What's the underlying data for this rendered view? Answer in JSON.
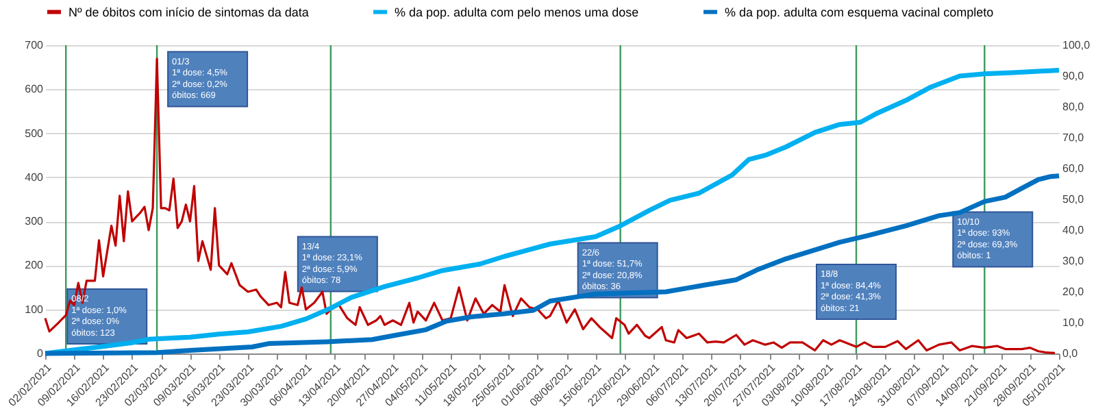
{
  "chart_data": {
    "type": "line",
    "legend": "top",
    "grid": "y",
    "xlim": [
      "2021-02-02",
      "2021-10-05"
    ],
    "xticks": [
      {
        "value": "2021-02-02",
        "label": "02/02/2021"
      },
      {
        "value": "2021-02-09",
        "label": "09/02/2021"
      },
      {
        "value": "2021-02-16",
        "label": "16/02/2021"
      },
      {
        "value": "2021-02-23",
        "label": "23/02/2021"
      },
      {
        "value": "2021-03-02",
        "label": "02/03/2021"
      },
      {
        "value": "2021-03-09",
        "label": "09/03/2021"
      },
      {
        "value": "2021-03-16",
        "label": "16/03/2021"
      },
      {
        "value": "2021-03-23",
        "label": "23/03/2021"
      },
      {
        "value": "2021-03-30",
        "label": "30/03/2021"
      },
      {
        "value": "2021-04-06",
        "label": "06/04/2021"
      },
      {
        "value": "2021-04-13",
        "label": "13/04/2021"
      },
      {
        "value": "2021-04-20",
        "label": "20/04/2021"
      },
      {
        "value": "2021-04-27",
        "label": "27/04/2021"
      },
      {
        "value": "2021-05-04",
        "label": "04/05/2021"
      },
      {
        "value": "2021-05-11",
        "label": "11/05/2021"
      },
      {
        "value": "2021-05-18",
        "label": "18/05/2021"
      },
      {
        "value": "2021-05-25",
        "label": "25/05/2021"
      },
      {
        "value": "2021-06-01",
        "label": "01/06/2021"
      },
      {
        "value": "2021-06-08",
        "label": "08/06/2021"
      },
      {
        "value": "2021-06-15",
        "label": "15/06/2021"
      },
      {
        "value": "2021-06-22",
        "label": "22/06/2021"
      },
      {
        "value": "2021-06-29",
        "label": "29/06/2021"
      },
      {
        "value": "2021-07-06",
        "label": "06/07/2021"
      },
      {
        "value": "2021-07-13",
        "label": "13/07/2021"
      },
      {
        "value": "2021-07-20",
        "label": "20/07/2021"
      },
      {
        "value": "2021-07-27",
        "label": "27/07/2021"
      },
      {
        "value": "2021-08-03",
        "label": "03/08/2021"
      },
      {
        "value": "2021-08-10",
        "label": "10/08/2021"
      },
      {
        "value": "2021-08-17",
        "label": "17/08/2021"
      },
      {
        "value": "2021-08-24",
        "label": "24/08/2021"
      },
      {
        "value": "2021-08-31",
        "label": "31/08/2021"
      },
      {
        "value": "2021-09-07",
        "label": "07/09/2021"
      },
      {
        "value": "2021-09-14",
        "label": "14/09/2021"
      },
      {
        "value": "2021-09-21",
        "label": "21/09/2021"
      },
      {
        "value": "2021-09-28",
        "label": "28/09/2021"
      },
      {
        "value": "2021-10-05",
        "label": "05/10/2021"
      }
    ],
    "ylim": [
      0,
      700
    ],
    "yticks": [
      0,
      100,
      200,
      300,
      400,
      500,
      600,
      700
    ],
    "y2lim": [
      0,
      100
    ],
    "y2ticks": [
      {
        "value": 0,
        "label": "0,0"
      },
      {
        "value": 10,
        "label": "10,0"
      },
      {
        "value": 20,
        "label": "20,0"
      },
      {
        "value": 30,
        "label": "30,0"
      },
      {
        "value": 40,
        "label": "40,0"
      },
      {
        "value": 50,
        "label": "50,0"
      },
      {
        "value": 60,
        "label": "60,0"
      },
      {
        "value": 70,
        "label": "70,0"
      },
      {
        "value": 80,
        "label": "80,0"
      },
      {
        "value": 90,
        "label": "90,0"
      },
      {
        "value": 100,
        "label": "100,0"
      }
    ],
    "series": [
      {
        "name": "Nº de óbitos com início de sintomas da data",
        "color": "#c00000",
        "x": [
          "2021-02-02",
          "2021-02-03",
          "2021-02-05",
          "2021-02-07",
          "2021-02-08",
          "2021-02-09",
          "2021-02-10",
          "2021-02-11",
          "2021-02-12",
          "2021-02-14",
          "2021-02-15",
          "2021-02-16",
          "2021-02-18",
          "2021-02-19",
          "2021-02-20",
          "2021-02-21",
          "2021-02-22",
          "2021-02-23",
          "2021-02-24",
          "2021-02-25",
          "2021-02-26",
          "2021-02-27",
          "2021-02-28",
          "2021-03-01",
          "2021-03-02",
          "2021-03-03",
          "2021-03-04",
          "2021-03-05",
          "2021-03-06",
          "2021-03-07",
          "2021-03-08",
          "2021-03-09",
          "2021-03-10",
          "2021-03-11",
          "2021-03-12",
          "2021-03-14",
          "2021-03-15",
          "2021-03-16",
          "2021-03-18",
          "2021-03-19",
          "2021-03-21",
          "2021-03-23",
          "2021-03-25",
          "2021-03-26",
          "2021-03-28",
          "2021-03-30",
          "2021-03-31",
          "2021-04-01",
          "2021-04-02",
          "2021-04-04",
          "2021-04-05",
          "2021-04-06",
          "2021-04-08",
          "2021-04-10",
          "2021-04-11",
          "2021-04-12",
          "2021-04-14",
          "2021-04-16",
          "2021-04-18",
          "2021-04-19",
          "2021-04-21",
          "2021-04-23",
          "2021-04-24",
          "2021-04-25",
          "2021-04-27",
          "2021-04-29",
          "2021-05-01",
          "2021-05-02",
          "2021-05-03",
          "2021-05-05",
          "2021-05-07",
          "2021-05-09",
          "2021-05-11",
          "2021-05-13",
          "2021-05-15",
          "2021-05-17",
          "2021-05-19",
          "2021-05-21",
          "2021-05-23",
          "2021-05-24",
          "2021-05-26",
          "2021-05-28",
          "2021-05-30",
          "2021-06-01",
          "2021-06-03",
          "2021-06-04",
          "2021-06-06",
          "2021-06-08",
          "2021-06-10",
          "2021-06-12",
          "2021-06-14",
          "2021-06-16",
          "2021-06-19",
          "2021-06-20",
          "2021-06-22",
          "2021-06-23",
          "2021-06-25",
          "2021-06-27",
          "2021-06-28",
          "2021-07-01",
          "2021-07-02",
          "2021-07-04",
          "2021-07-05",
          "2021-07-07",
          "2021-07-10",
          "2021-07-12",
          "2021-07-14",
          "2021-07-16",
          "2021-07-19",
          "2021-07-21",
          "2021-07-23",
          "2021-07-26",
          "2021-07-28",
          "2021-07-30",
          "2021-08-01",
          "2021-08-04",
          "2021-08-07",
          "2021-08-09",
          "2021-08-11",
          "2021-08-13",
          "2021-08-17",
          "2021-08-19",
          "2021-08-21",
          "2021-08-24",
          "2021-08-27",
          "2021-08-29",
          "2021-09-01",
          "2021-09-03",
          "2021-09-06",
          "2021-09-09",
          "2021-09-11",
          "2021-09-14",
          "2021-09-17",
          "2021-09-20",
          "2021-09-22",
          "2021-09-26",
          "2021-09-28",
          "2021-09-30",
          "2021-10-02",
          "2021-10-04"
        ],
        "values": [
          80,
          50,
          68,
          87,
          120,
          110,
          160,
          115,
          165,
          165,
          257,
          175,
          290,
          245,
          358,
          255,
          368,
          300,
          310,
          320,
          333,
          280,
          330,
          669,
          330,
          330,
          325,
          397,
          285,
          300,
          338,
          300,
          380,
          210,
          255,
          190,
          330,
          200,
          180,
          205,
          155,
          140,
          145,
          130,
          110,
          115,
          105,
          185,
          115,
          110,
          150,
          100,
          115,
          140,
          90,
          100,
          110,
          80,
          65,
          105,
          65,
          75,
          85,
          65,
          75,
          65,
          115,
          70,
          95,
          75,
          115,
          75,
          80,
          150,
          75,
          125,
          90,
          110,
          95,
          155,
          85,
          125,
          105,
          100,
          80,
          85,
          120,
          70,
          100,
          55,
          80,
          60,
          35,
          80,
          65,
          45,
          65,
          40,
          35,
          60,
          30,
          25,
          53,
          35,
          45,
          25,
          27,
          25,
          42,
          20,
          30,
          20,
          25,
          13,
          25,
          25,
          7,
          30,
          20,
          30,
          15,
          25,
          15,
          15,
          28,
          10,
          30,
          7,
          20,
          25,
          7,
          17,
          13,
          17,
          10,
          10,
          13,
          5,
          2,
          1
        ]
      },
      {
        "name": "% da pop. adulta com pelo menos uma dose",
        "color": "#00b0f0",
        "axis": "y2",
        "x": [
          "2021-02-02",
          "2021-02-08",
          "2021-02-15",
          "2021-02-23",
          "2021-02-27",
          "2021-03-09",
          "2021-03-16",
          "2021-03-23",
          "2021-03-31",
          "2021-04-06",
          "2021-04-12",
          "2021-04-17",
          "2021-04-25",
          "2021-05-03",
          "2021-05-09",
          "2021-05-18",
          "2021-05-24",
          "2021-06-04",
          "2021-06-15",
          "2021-06-21",
          "2021-06-28",
          "2021-07-03",
          "2021-07-10",
          "2021-07-18",
          "2021-07-22",
          "2021-07-26",
          "2021-07-31",
          "2021-08-07",
          "2021-08-13",
          "2021-08-18",
          "2021-08-22",
          "2021-08-29",
          "2021-09-04",
          "2021-09-11",
          "2021-09-17",
          "2021-09-24",
          "2021-10-05"
        ],
        "values": [
          0,
          1,
          2.1,
          3.5,
          4.6,
          5.3,
          6.3,
          7,
          8.8,
          11.2,
          14.7,
          18.2,
          21.7,
          24.5,
          26.9,
          29,
          31.5,
          35.5,
          37.9,
          41.4,
          46.4,
          49.7,
          52,
          57.9,
          62.9,
          64.3,
          67,
          71.7,
          74.3,
          75,
          77.9,
          82.1,
          86.4,
          90,
          90.7,
          91.1,
          91.9
        ]
      },
      {
        "name": "% da pop. adulta com esquema vacinal completo",
        "color": "#0070c0",
        "axis": "y2",
        "x": [
          "2021-02-02",
          "2021-03-01",
          "2021-03-09",
          "2021-03-24",
          "2021-03-28",
          "2021-04-11",
          "2021-04-22",
          "2021-04-28",
          "2021-05-05",
          "2021-05-10",
          "2021-05-16",
          "2021-05-24",
          "2021-05-31",
          "2021-06-04",
          "2021-06-15",
          "2021-07-02",
          "2021-07-11",
          "2021-07-19",
          "2021-07-24",
          "2021-07-31",
          "2021-08-07",
          "2021-08-13",
          "2021-08-20",
          "2021-08-29",
          "2021-09-06",
          "2021-09-11",
          "2021-09-17",
          "2021-09-22",
          "2021-09-26",
          "2021-09-30",
          "2021-10-03",
          "2021-10-05"
        ],
        "values": [
          0,
          0.3,
          1,
          2.1,
          3.2,
          3.8,
          4.5,
          6,
          7.7,
          10.5,
          11.9,
          12.9,
          14,
          17,
          19.3,
          20,
          22.1,
          23.9,
          27.1,
          30.7,
          33.6,
          36.1,
          38.3,
          41.4,
          44.7,
          45.7,
          49.3,
          50.7,
          53.6,
          56.4,
          57.4,
          57.6
        ]
      }
    ],
    "ref_lines": [
      {
        "axis": "x",
        "value": "2021-02-07",
        "color": "#3a9a5a",
        "label": "08/2\n1ª dose: 1,0%\n2ª dose: 0%\nóbitos: 123"
      },
      {
        "axis": "x",
        "value": "2021-03-01",
        "color": "#3a9a5a",
        "label": "01/3\n1ª dose: 4,5%\n2ª dose: 0,2%\nóbitos: 669"
      },
      {
        "axis": "x",
        "value": "2021-04-12",
        "color": "#3a9a5a",
        "label": "13/4\n1ª dose: 23,1%\n2ª dose: 5,9%\nóbitos: 78"
      },
      {
        "axis": "x",
        "value": "2021-06-21",
        "color": "#3a9a5a",
        "label": "22/6\n1ª dose: 51,7%\n2ª dose: 20,8%\nóbitos: 36"
      },
      {
        "axis": "x",
        "value": "2021-08-17",
        "color": "#3a9a5a",
        "label": "18/8\n1ª dose: 84,4%\n2ª dose: 41,3%\nóbitos: 21"
      },
      {
        "axis": "x",
        "value": "2021-09-17",
        "color": "#3a9a5a",
        "label": "10/10\n1ª dose: 93%\n2ª dose: 69,3%\nóbitos: 1"
      }
    ]
  }
}
